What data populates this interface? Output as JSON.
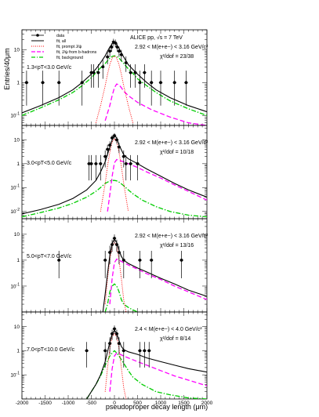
{
  "figure": {
    "xlabel": "pseudoproper decay length (μm)",
    "ylabel": "Entries/40μm",
    "experiment_label": "ALICE pp, √s = 7 TeV",
    "x_tick_labels": [
      "-2000",
      "-1500",
      "-1000",
      "-500",
      "0",
      "500",
      "1000",
      "1500",
      "2000"
    ]
  },
  "legend": {
    "entries": [
      {
        "label": "data",
        "color": "#000000",
        "style": "marker"
      },
      {
        "label": "fit, all",
        "color": "#000000",
        "style": "solid"
      },
      {
        "label": "fit, prompt J/ψ",
        "color": "#ff0000",
        "style": "dotted"
      },
      {
        "label": "fit, J/ψ from b-hadrons",
        "color": "#ff00ff",
        "style": "dashed"
      },
      {
        "label": "fit, background",
        "color": "#00cc00",
        "style": "dashdot"
      }
    ]
  },
  "colors": {
    "all": "#000000",
    "prompt": "#ff0000",
    "nonprompt": "#ff00ff",
    "background": "#00cc00"
  },
  "chart_data": [
    {
      "type": "scatter",
      "pt_label": "1.3<pT<3.0 GeV/c",
      "mass_label": "2.92 < M(e+e−) < 3.16 GeV/c²",
      "chi2_label": "χ²/dof = 23/38",
      "xlim": [
        -2000,
        2000
      ],
      "ylim": [
        0.05,
        40
      ],
      "yscale": "log",
      "y_tick_labels": [
        "1",
        "10"
      ],
      "y_tick_values": [
        1,
        10
      ],
      "y_exp_labels": [
        "-1"
      ],
      "y_exp_values": [
        0.1
      ],
      "curves": {
        "all": {
          "x": [
            -2000,
            -1600,
            -1200,
            -900,
            -700,
            -500,
            -400,
            -300,
            -200,
            -150,
            -100,
            -50,
            0,
            50,
            100,
            150,
            200,
            300,
            400,
            500,
            700,
            900,
            1200,
            1600,
            2000
          ],
          "y": [
            0.12,
            0.2,
            0.35,
            0.6,
            1.0,
            1.8,
            2.6,
            4.0,
            6.5,
            9,
            12,
            15,
            16,
            14,
            11,
            8,
            6,
            3.5,
            2.5,
            1.8,
            1.0,
            0.6,
            0.35,
            0.2,
            0.13
          ]
        },
        "prompt": {
          "x": [
            -400,
            -300,
            -200,
            -150,
            -100,
            -50,
            0,
            50,
            100,
            150,
            200,
            300,
            400
          ],
          "y": [
            0.06,
            0.2,
            0.8,
            1.8,
            3.5,
            5.5,
            6.5,
            5.5,
            3.5,
            1.8,
            0.8,
            0.2,
            0.06
          ]
        },
        "nonprompt": {
          "x": [
            -200,
            -100,
            -50,
            0,
            50,
            100,
            150,
            200,
            300,
            500,
            800,
            1200,
            1600,
            2000
          ],
          "y": [
            0.07,
            0.2,
            0.4,
            0.7,
            0.9,
            0.85,
            0.7,
            0.55,
            0.4,
            0.25,
            0.15,
            0.09,
            0.06,
            0.05
          ]
        },
        "background": {
          "x": [
            -2000,
            -1600,
            -1200,
            -900,
            -700,
            -500,
            -400,
            -300,
            -200,
            -150,
            -100,
            -50,
            0,
            50,
            100,
            150,
            200,
            300,
            400,
            500,
            700,
            900,
            1200,
            1600,
            2000
          ],
          "y": [
            0.1,
            0.17,
            0.3,
            0.5,
            0.8,
            1.4,
            2.0,
            2.8,
            3.8,
            4.6,
            5.5,
            6.2,
            6.5,
            6.2,
            5.5,
            4.6,
            3.8,
            2.6,
            1.9,
            1.3,
            0.8,
            0.5,
            0.28,
            0.16,
            0.1
          ]
        }
      },
      "points": [
        {
          "x": -1900,
          "y": 1,
          "el": 0.8,
          "eh": 1.3
        },
        {
          "x": -1550,
          "y": 1,
          "el": 0.8,
          "eh": 1.3
        },
        {
          "x": -1200,
          "y": 1,
          "el": 0.8,
          "eh": 1.3
        },
        {
          "x": -700,
          "y": 1,
          "el": 0.8,
          "eh": 1.3
        },
        {
          "x": -500,
          "y": 2,
          "el": 1.3,
          "eh": 1.6
        },
        {
          "x": -450,
          "y": 2,
          "el": 1.3,
          "eh": 1.6
        },
        {
          "x": -350,
          "y": 2,
          "el": 1.3,
          "eh": 1.6
        },
        {
          "x": -250,
          "y": 3,
          "el": 1.7,
          "eh": 1.9
        },
        {
          "x": -150,
          "y": 6,
          "el": 2.4,
          "eh": 2.6
        },
        {
          "x": -100,
          "y": 9,
          "el": 3,
          "eh": 3.3
        },
        {
          "x": -60,
          "y": 12,
          "el": 3.4,
          "eh": 3.6
        },
        {
          "x": -20,
          "y": 17,
          "el": 4,
          "eh": 4.3
        },
        {
          "x": 20,
          "y": 16,
          "el": 4,
          "eh": 4.2
        },
        {
          "x": 60,
          "y": 12,
          "el": 3.4,
          "eh": 3.6
        },
        {
          "x": 100,
          "y": 9,
          "el": 3,
          "eh": 3.3
        },
        {
          "x": 150,
          "y": 7,
          "el": 2.6,
          "eh": 2.8
        },
        {
          "x": 250,
          "y": 4,
          "el": 1.9,
          "eh": 2.2
        },
        {
          "x": 350,
          "y": 2,
          "el": 1.3,
          "eh": 1.6
        },
        {
          "x": 450,
          "y": 2,
          "el": 1.3,
          "eh": 1.6
        },
        {
          "x": 550,
          "y": 1,
          "el": 0.8,
          "eh": 1.3
        },
        {
          "x": 650,
          "y": 2,
          "el": 1.3,
          "eh": 1.6
        },
        {
          "x": 800,
          "y": 1,
          "el": 0.8,
          "eh": 1.3
        },
        {
          "x": 1000,
          "y": 1,
          "el": 0.8,
          "eh": 1.3
        },
        {
          "x": 1300,
          "y": 1,
          "el": 0.8,
          "eh": 1.3
        },
        {
          "x": 1550,
          "y": 1,
          "el": 0.8,
          "eh": 1.3
        }
      ]
    },
    {
      "type": "scatter",
      "pt_label": "3.0<pT<5.0 GeV/c",
      "mass_label": "2.92 < M(e+e−) < 3.16 GeV/c²",
      "chi2_label": "χ²/dof = 10/18",
      "xlim": [
        -2000,
        2000
      ],
      "ylim": [
        0.005,
        40
      ],
      "yscale": "log",
      "y_tick_labels": [
        "1",
        "10"
      ],
      "y_tick_values": [
        1,
        10
      ],
      "y_exp_labels": [
        "-1",
        "-2"
      ],
      "y_exp_values": [
        0.1,
        0.01
      ],
      "curves": {
        "all": {
          "x": [
            -2000,
            -1600,
            -1200,
            -900,
            -600,
            -400,
            -300,
            -200,
            -100,
            -50,
            0,
            50,
            100,
            200,
            300,
            500,
            700,
            1000,
            1300,
            1600,
            2000
          ],
          "y": [
            0.008,
            0.012,
            0.02,
            0.035,
            0.08,
            0.2,
            0.45,
            1.2,
            5,
            10,
            15,
            12,
            6,
            2.4,
            1.6,
            1.0,
            0.6,
            0.3,
            0.15,
            0.08,
            0.04
          ]
        },
        "prompt": {
          "x": [
            -300,
            -200,
            -150,
            -100,
            -50,
            0,
            50,
            100,
            150,
            200,
            300
          ],
          "y": [
            0.01,
            0.15,
            0.8,
            3,
            8,
            11,
            8,
            3,
            0.8,
            0.15,
            0.01
          ]
        },
        "nonprompt": {
          "x": [
            -150,
            -100,
            -50,
            0,
            50,
            100,
            200,
            300,
            500,
            700,
            1000,
            1300,
            1600,
            2000
          ],
          "y": [
            0.01,
            0.05,
            0.3,
            1.1,
            1.5,
            1.4,
            1.2,
            1.0,
            0.7,
            0.45,
            0.25,
            0.13,
            0.07,
            0.03
          ]
        },
        "background": {
          "x": [
            -2000,
            -1600,
            -1200,
            -900,
            -600,
            -400,
            -300,
            -200,
            -100,
            -50,
            0,
            50,
            100,
            200,
            300,
            400,
            600,
            900,
            1200,
            1600,
            2000
          ],
          "y": [
            0.006,
            0.009,
            0.014,
            0.022,
            0.04,
            0.07,
            0.1,
            0.15,
            0.19,
            0.2,
            0.2,
            0.19,
            0.17,
            0.12,
            0.08,
            0.055,
            0.03,
            0.016,
            0.01,
            0.007,
            0.006
          ]
        }
      },
      "points": [
        {
          "x": -550,
          "y": 1,
          "el": 0.8,
          "eh": 1.3
        },
        {
          "x": -500,
          "y": 1,
          "el": 0.8,
          "eh": 1.3
        },
        {
          "x": -400,
          "y": 1,
          "el": 0.8,
          "eh": 1.3
        },
        {
          "x": -300,
          "y": 1,
          "el": 0.8,
          "eh": 1.3
        },
        {
          "x": -200,
          "y": 2,
          "el": 1.3,
          "eh": 1.6
        },
        {
          "x": -150,
          "y": 4,
          "el": 1.9,
          "eh": 2.2
        },
        {
          "x": -100,
          "y": 6,
          "el": 2.4,
          "eh": 2.6
        },
        {
          "x": -50,
          "y": 12,
          "el": 3.4,
          "eh": 3.6
        },
        {
          "x": 0,
          "y": 15,
          "el": 3.8,
          "eh": 4
        },
        {
          "x": 50,
          "y": 10,
          "el": 3.1,
          "eh": 3.3
        },
        {
          "x": 100,
          "y": 5,
          "el": 2.2,
          "eh": 2.4
        },
        {
          "x": 200,
          "y": 2,
          "el": 1.3,
          "eh": 1.6
        },
        {
          "x": 250,
          "y": 1,
          "el": 0.8,
          "eh": 1.3
        },
        {
          "x": 350,
          "y": 1,
          "el": 0.8,
          "eh": 1.3
        },
        {
          "x": 500,
          "y": 1,
          "el": 0.8,
          "eh": 1.3
        }
      ]
    },
    {
      "type": "scatter",
      "pt_label": "5.0<pT<7.0 GeV/c",
      "mass_label": "2.92 < M(e+e−) < 3.16 GeV/c²",
      "chi2_label": "χ²/dof = 13/16",
      "xlim": [
        -2000,
        2000
      ],
      "ylim": [
        0.01,
        40
      ],
      "yscale": "log",
      "y_tick_labels": [
        "1",
        "10"
      ],
      "y_tick_values": [
        1,
        10
      ],
      "y_exp_labels": [
        "-1"
      ],
      "y_exp_values": [
        0.1
      ],
      "curves": {
        "all": {
          "x": [
            -250,
            -200,
            -150,
            -100,
            -50,
            0,
            50,
            100,
            150,
            200,
            300,
            500,
            700,
            1000,
            1300,
            1600,
            2000
          ],
          "y": [
            0.01,
            0.05,
            0.3,
            1.5,
            4.5,
            6.5,
            4.8,
            2.4,
            1.4,
            1.0,
            0.75,
            0.5,
            0.35,
            0.2,
            0.12,
            0.07,
            0.04
          ]
        },
        "prompt": {
          "x": [
            -200,
            -150,
            -100,
            -50,
            0,
            50,
            100,
            150,
            200,
            250
          ],
          "y": [
            0.02,
            0.2,
            1.0,
            3.5,
            5,
            3.5,
            1.0,
            0.2,
            0.03,
            0.01
          ]
        },
        "nonprompt": {
          "x": [
            -100,
            -50,
            0,
            50,
            100,
            200,
            300,
            500,
            700,
            1000,
            1300,
            1600,
            2000
          ],
          "y": [
            0.02,
            0.2,
            0.8,
            1.1,
            1.0,
            0.8,
            0.65,
            0.45,
            0.3,
            0.18,
            0.1,
            0.06,
            0.03
          ]
        },
        "background": {
          "x": [
            -200,
            -150,
            -100,
            -50,
            0,
            50,
            100,
            150,
            200,
            300,
            400,
            500
          ],
          "y": [
            0.01,
            0.02,
            0.06,
            0.1,
            0.12,
            0.1,
            0.06,
            0.03,
            0.02,
            0.015,
            0.012,
            0.01
          ]
        }
      },
      "points": [
        {
          "x": -1200,
          "y": 1,
          "el": 0.8,
          "eh": 1.3
        },
        {
          "x": -200,
          "y": 1,
          "el": 0.8,
          "eh": 1.3
        },
        {
          "x": -100,
          "y": 2,
          "el": 1.3,
          "eh": 1.6
        },
        {
          "x": -50,
          "y": 4,
          "el": 1.9,
          "eh": 2.2
        },
        {
          "x": 0,
          "y": 7,
          "el": 2.6,
          "eh": 2.8
        },
        {
          "x": 50,
          "y": 4,
          "el": 1.9,
          "eh": 2.2
        },
        {
          "x": 100,
          "y": 2,
          "el": 1.3,
          "eh": 1.6
        },
        {
          "x": 200,
          "y": 1,
          "el": 0.8,
          "eh": 1.3
        },
        {
          "x": 550,
          "y": 1,
          "el": 0.8,
          "eh": 1.3
        },
        {
          "x": 800,
          "y": 1,
          "el": 0.8,
          "eh": 1.3
        },
        {
          "x": 1450,
          "y": 1,
          "el": 0.8,
          "eh": 1.3
        }
      ]
    },
    {
      "type": "scatter",
      "pt_label": "7.0<pT<10.0 GeV/c",
      "mass_label": "2.4 < M(e+e−) < 4.0 GeV/c²",
      "chi2_label": "χ²/dof = 8/14",
      "xlim": [
        -2000,
        2000
      ],
      "ylim": [
        0.01,
        40
      ],
      "yscale": "log",
      "y_tick_labels": [
        "1",
        "10"
      ],
      "y_tick_values": [
        1,
        10
      ],
      "y_exp_labels": [
        "-1"
      ],
      "y_exp_values": [
        0.1
      ],
      "curves": {
        "all": {
          "x": [
            -600,
            -400,
            -300,
            -200,
            -150,
            -100,
            -50,
            0,
            50,
            100,
            150,
            200,
            300,
            500,
            700,
            1000,
            1300,
            1600,
            2000
          ],
          "y": [
            0.01,
            0.04,
            0.1,
            0.35,
            0.9,
            2.2,
            5,
            7,
            5.2,
            2.6,
            1.5,
            1.1,
            0.9,
            0.7,
            0.5,
            0.35,
            0.25,
            0.18,
            0.13
          ]
        },
        "prompt": {
          "x": [
            -200,
            -150,
            -100,
            -50,
            0,
            50,
            100,
            150,
            200,
            250
          ],
          "y": [
            0.02,
            0.2,
            1.2,
            3.8,
            5,
            3.8,
            1.2,
            0.2,
            0.03,
            0.01
          ]
        },
        "nonprompt": {
          "x": [
            -100,
            -50,
            0,
            50,
            100,
            200,
            300,
            500,
            700,
            1000,
            1300,
            1600,
            2000
          ],
          "y": [
            0.02,
            0.18,
            0.6,
            0.8,
            0.75,
            0.6,
            0.5,
            0.35,
            0.25,
            0.15,
            0.09,
            0.06,
            0.035
          ]
        },
        "background": {
          "x": [
            -600,
            -400,
            -300,
            -200,
            -100,
            -50,
            0,
            50,
            100,
            200,
            300,
            400,
            600,
            900,
            1200,
            1600,
            2000
          ],
          "y": [
            0.01,
            0.04,
            0.09,
            0.25,
            0.6,
            0.8,
            1.0,
            0.8,
            0.6,
            0.3,
            0.15,
            0.08,
            0.04,
            0.02,
            0.015,
            0.011,
            0.01
          ]
        }
      },
      "points": [
        {
          "x": -600,
          "y": 1,
          "el": 0.8,
          "eh": 1.3
        },
        {
          "x": -200,
          "y": 1,
          "el": 0.8,
          "eh": 1.3
        },
        {
          "x": -100,
          "y": 2,
          "el": 1.3,
          "eh": 1.6
        },
        {
          "x": -50,
          "y": 5,
          "el": 2.2,
          "eh": 2.4
        },
        {
          "x": 0,
          "y": 8,
          "el": 2.8,
          "eh": 3
        },
        {
          "x": 50,
          "y": 5,
          "el": 2.2,
          "eh": 2.4
        },
        {
          "x": 100,
          "y": 2,
          "el": 1.3,
          "eh": 1.6
        },
        {
          "x": 200,
          "y": 1,
          "el": 0.8,
          "eh": 1.3
        },
        {
          "x": 550,
          "y": 1,
          "el": 0.8,
          "eh": 1.3
        },
        {
          "x": 650,
          "y": 1,
          "el": 0.8,
          "eh": 1.3
        },
        {
          "x": 750,
          "y": 1,
          "el": 0.8,
          "eh": 1.3
        }
      ]
    }
  ]
}
